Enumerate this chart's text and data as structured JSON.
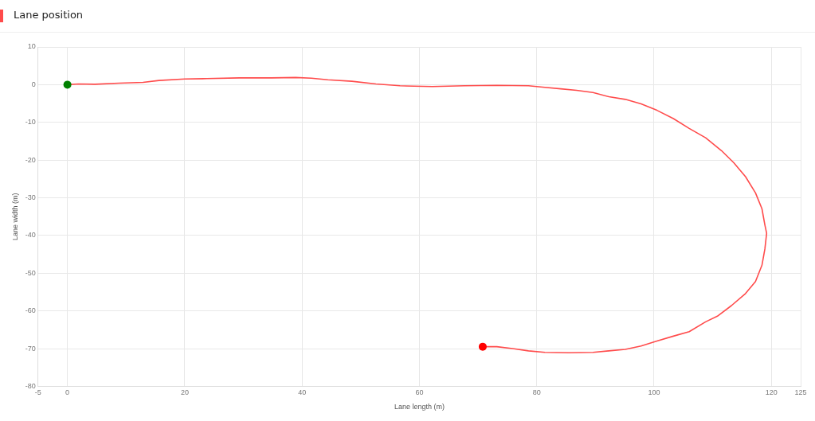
{
  "chart_data": {
    "type": "line",
    "title": "Lane position",
    "xlabel": "Lane length (m)",
    "ylabel": "Lane width (m)",
    "xlim": [
      -5,
      125
    ],
    "xticks": [
      -5,
      0,
      20,
      40,
      60,
      80,
      100,
      120,
      125
    ],
    "ylim": [
      -80,
      10
    ],
    "yticks": [
      -80,
      -70,
      -60,
      -50,
      -40,
      -30,
      -20,
      -10,
      0,
      10
    ],
    "grid": true,
    "legend": false,
    "series": [
      {
        "color": "#ff4b4b",
        "marker": "none",
        "x": [
          0,
          1.9,
          4.7,
          8.8,
          12.9,
          15.6,
          20,
          23.8,
          29.3,
          34.8,
          38.9,
          41.6,
          44.4,
          48.5,
          52.6,
          56.7,
          62.2,
          67.7,
          73.2,
          78.6,
          81.4,
          84.1,
          86.8,
          89.6,
          92.3,
          95.1,
          97.8,
          100.5,
          103.3,
          106,
          108.8,
          111.5,
          113.6,
          115.6,
          117.3,
          118.4,
          118.9,
          119.2,
          118.9,
          118.4,
          117.3,
          115.6,
          113.2,
          110.8,
          108.8,
          106,
          103.3,
          100.5,
          97.8,
          95.1,
          92.3,
          89.6,
          85.5,
          81.4,
          78.6,
          75.9,
          73.2,
          70.8
        ],
        "values": [
          0,
          0.2,
          0.1,
          0.4,
          0.6,
          1.1,
          1.5,
          1.6,
          1.8,
          1.8,
          1.9,
          1.7,
          1.3,
          0.9,
          0.2,
          -0.3,
          -0.5,
          -0.3,
          -0.2,
          -0.3,
          -0.7,
          -1.1,
          -1.5,
          -2.1,
          -3.2,
          -3.9,
          -5.1,
          -6.8,
          -9,
          -11.6,
          -14.1,
          -17.5,
          -20.7,
          -24.4,
          -28.7,
          -32.9,
          -37.2,
          -39.4,
          -43.6,
          -47.9,
          -52.2,
          -55.4,
          -58.6,
          -61.4,
          -62.9,
          -65.5,
          -66.7,
          -68,
          -69.3,
          -70.2,
          -70.6,
          -71,
          -71.1,
          -71,
          -70.6,
          -70,
          -69.5,
          -69.5
        ]
      },
      {
        "type": "scatter",
        "color": "#008000",
        "marker": "circle",
        "x": [
          0
        ],
        "values": [
          0
        ]
      },
      {
        "type": "scatter",
        "color": "#ff0000",
        "marker": "circle",
        "x": [
          70.8
        ],
        "values": [
          -69.5
        ]
      }
    ]
  }
}
